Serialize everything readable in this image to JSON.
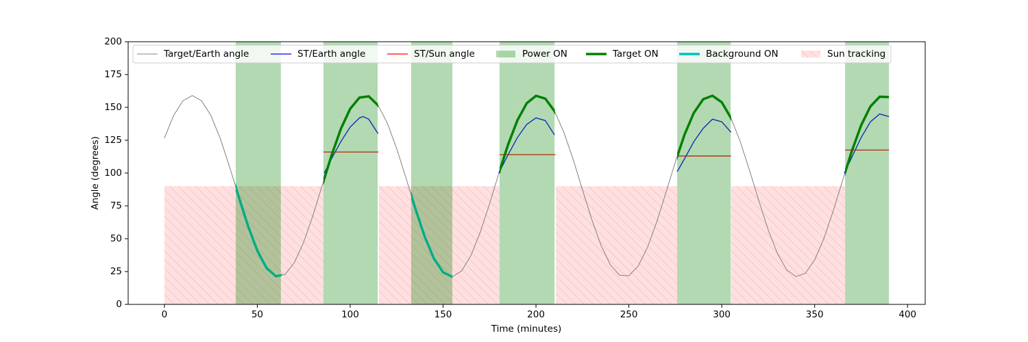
{
  "chart_data": {
    "type": "line",
    "xlabel": "Time (minutes)",
    "ylabel": "Angle (degrees)",
    "xlim": [
      -19.5,
      409.5
    ],
    "ylim": [
      0,
      200
    ],
    "xticks": [
      0,
      50,
      100,
      150,
      200,
      250,
      300,
      350,
      400
    ],
    "yticks": [
      0,
      25,
      50,
      75,
      100,
      125,
      150,
      175,
      200
    ],
    "legend": "upper center",
    "x": [
      0,
      5,
      10,
      15,
      20,
      25,
      30,
      35,
      40,
      45,
      50,
      55,
      60,
      65,
      70,
      75,
      80,
      85,
      90,
      95,
      100,
      105,
      110,
      115,
      120,
      125,
      130,
      135,
      140,
      145,
      150,
      155,
      160,
      165,
      170,
      175,
      180,
      185,
      190,
      195,
      200,
      205,
      210,
      215,
      220,
      225,
      230,
      235,
      240,
      245,
      250,
      255,
      260,
      265,
      270,
      275,
      280,
      285,
      290,
      295,
      300,
      305,
      310,
      315,
      320,
      325,
      330,
      335,
      340,
      345,
      350,
      355,
      360,
      365,
      370,
      375,
      380,
      385,
      390
    ],
    "series": [
      {
        "name": "Target/Earth angle",
        "color": "#808080",
        "values": [
          126.6,
          143.9,
          155.1,
          159,
          155.1,
          143.9,
          126.6,
          105.1,
          82.0,
          59.8,
          40.9,
          27.6,
          21.4,
          22.9,
          31.9,
          47.5,
          67.9,
          90.8,
          113.6,
          133.7,
          148.9,
          157.5,
          158.4,
          151.6,
          138.0,
          118.8,
          96.4,
          73.3,
          52.0,
          35.1,
          24.4,
          21.0,
          25.5,
          37.2,
          54.9,
          76.5,
          99.7,
          121.7,
          140.2,
          153.1,
          158.8,
          156.7,
          147.1,
          131.1,
          110.5,
          87.4,
          64.8,
          45.0,
          30.2,
          22.2,
          21.8,
          29.1,
          43.3,
          62.8,
          85.3,
          108.4,
          129.4,
          145.9,
          156.2,
          158.9,
          153.9,
          141.8,
          123.7,
          101.8,
          78.7,
          56.7,
          38.6,
          26.2,
          21.1,
          23.7,
          33.8,
          50.3,
          71.2,
          94.2,
          116.7,
          136.3,
          150.7,
          158.1,
          157.9
        ]
      },
      {
        "name": "ST/Earth angle",
        "color": "#0000ff",
        "x": [
          86,
          90,
          95,
          100,
          105,
          107,
          110,
          115,
          null,
          180,
          185,
          190,
          195,
          200,
          205,
          210,
          null,
          276,
          280,
          285,
          290,
          295,
          300,
          305,
          null,
          366,
          370,
          375,
          380,
          385,
          390
        ],
        "values": [
          100,
          111,
          124,
          135,
          142,
          143,
          141,
          130,
          null,
          100,
          114,
          127,
          137,
          142,
          140,
          129,
          null,
          101,
          111,
          124,
          134,
          141,
          139,
          131,
          null,
          100,
          112,
          127,
          139,
          145,
          143
        ]
      },
      {
        "name": "ST/Sun angle",
        "color": "#ff0000",
        "x": [
          85.6,
          115.2,
          null,
          180.4,
          210.5,
          null,
          276,
          305,
          null,
          366.4,
          390
        ],
        "values": [
          116,
          116,
          null,
          114,
          114,
          null,
          113,
          113,
          null,
          117.5,
          117.5
        ]
      }
    ],
    "spans": [
      {
        "name": "Power ON",
        "color": "#008000",
        "intervals": [
          [
            38.4,
            62.7
          ],
          [
            85.6,
            114.8
          ],
          [
            132.8,
            155
          ],
          [
            180.4,
            210
          ],
          [
            276,
            304.8
          ],
          [
            366.4,
            390
          ]
        ]
      },
      {
        "name": "Sun tracking",
        "color": "#ff0000",
        "y_range": [
          0,
          90
        ],
        "intervals": [
          [
            0,
            85.6
          ],
          [
            115.5,
            180.4
          ],
          [
            210.7,
            276
          ],
          [
            305,
            366.4
          ]
        ]
      }
    ],
    "highlights": [
      {
        "name": "Target ON",
        "color": "#008000",
        "intervals": [
          [
            85.6,
            115
          ],
          [
            180.4,
            210.2
          ],
          [
            276,
            305
          ],
          [
            366.4,
            390
          ]
        ]
      },
      {
        "name": "Background ON",
        "color": "#00bfbf",
        "intervals": [
          [
            38.4,
            63.2
          ],
          [
            132.8,
            155
          ]
        ]
      }
    ]
  }
}
